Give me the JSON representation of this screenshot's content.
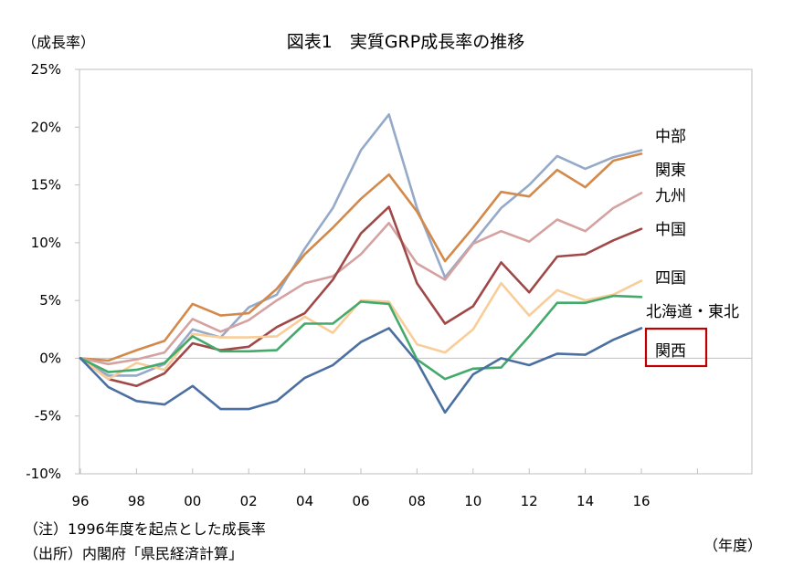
{
  "chart_data": {
    "type": "line",
    "title": "図表1　実質GRP成長率の推移",
    "ylabel": "（成長率）",
    "xlabel": "（年度）",
    "ylim": [
      -10,
      25
    ],
    "yticks": [
      -10,
      -5,
      0,
      5,
      10,
      15,
      20,
      25
    ],
    "ytick_labels": [
      "-10%",
      "-5%",
      "0%",
      "5%",
      "10%",
      "15%",
      "20%",
      "25%"
    ],
    "xlim": [
      1996,
      2018
    ],
    "xtick_positions": [
      1996,
      1998,
      2000,
      2002,
      2004,
      2006,
      2008,
      2010,
      2012,
      2014,
      2016,
      2018
    ],
    "xtick_labels": [
      "96",
      "98",
      "00",
      "02",
      "04",
      "06",
      "08",
      "10",
      "12",
      "14",
      "16",
      ""
    ],
    "x": [
      1996,
      1997,
      1998,
      1999,
      2000,
      2001,
      2002,
      2003,
      2004,
      2005,
      2006,
      2007,
      2008,
      2009,
      2010,
      2011,
      2012,
      2013,
      2014,
      2015,
      2016
    ],
    "grid": false,
    "series": [
      {
        "name": "中部",
        "color": "#95a9c8",
        "values": [
          0,
          -1.5,
          -1.5,
          -0.5,
          2.5,
          1.8,
          4.4,
          5.5,
          9.5,
          13.0,
          18.0,
          21.1,
          13.0,
          7.0,
          10.0,
          13.0,
          15.0,
          17.5,
          16.4,
          17.4,
          18.0
        ]
      },
      {
        "name": "関東",
        "color": "#d2894a",
        "values": [
          0,
          -0.2,
          0.7,
          1.5,
          4.7,
          3.7,
          3.9,
          6.0,
          9.0,
          11.3,
          13.8,
          15.9,
          12.7,
          8.4,
          11.3,
          14.4,
          14.0,
          16.3,
          14.8,
          17.1,
          17.7
        ]
      },
      {
        "name": "九州",
        "color": "#d4a2a0",
        "values": [
          0,
          -0.5,
          -0.1,
          0.5,
          3.4,
          2.3,
          3.3,
          5.0,
          6.5,
          7.1,
          9.0,
          11.7,
          8.2,
          6.8,
          9.9,
          11.0,
          10.1,
          12.0,
          11.0,
          13.0,
          14.3
        ]
      },
      {
        "name": "中国",
        "color": "#a04848",
        "values": [
          0,
          -1.8,
          -2.4,
          -1.3,
          1.3,
          0.7,
          1.0,
          2.7,
          3.9,
          6.8,
          10.8,
          13.1,
          6.5,
          3.0,
          4.5,
          8.3,
          5.7,
          8.8,
          9.0,
          10.2,
          11.2
        ]
      },
      {
        "name": "四国",
        "color": "#f8cd98",
        "values": [
          0,
          -1.8,
          -0.4,
          -1.0,
          2.1,
          1.8,
          1.8,
          1.9,
          3.6,
          2.2,
          5.0,
          4.9,
          1.2,
          0.5,
          2.5,
          6.5,
          3.7,
          5.9,
          5.0,
          5.5,
          6.7
        ]
      },
      {
        "name": "北海道・東北",
        "color": "#44aa6c",
        "values": [
          0,
          -1.2,
          -1.0,
          -0.4,
          1.9,
          0.6,
          0.6,
          0.7,
          3.0,
          3.0,
          4.9,
          4.7,
          -0.1,
          -1.8,
          -0.9,
          -0.8,
          1.9,
          4.8,
          4.8,
          5.4,
          5.3
        ]
      },
      {
        "name": "関西",
        "color": "#4a6fa0",
        "values": [
          0,
          -2.5,
          -3.7,
          -4.0,
          -2.4,
          -4.4,
          -4.4,
          -3.7,
          -1.7,
          -0.6,
          1.4,
          2.6,
          -0.3,
          -4.7,
          -1.4,
          0.0,
          -0.6,
          0.4,
          0.3,
          1.6,
          2.6
        ]
      }
    ],
    "notes": [
      "（注）1996年度を起点とした成長率",
      "（出所）内閣府「県民経済計算」"
    ]
  }
}
